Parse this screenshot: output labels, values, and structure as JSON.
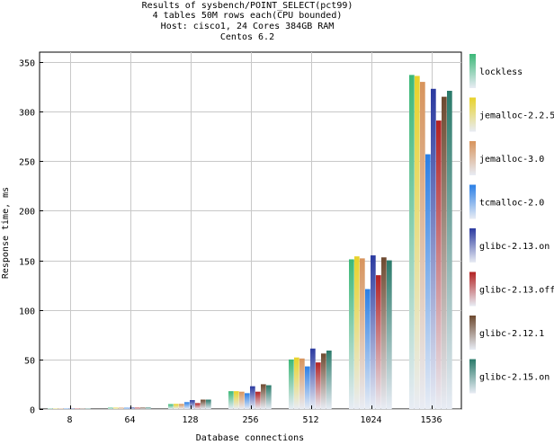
{
  "chart_data": {
    "type": "bar",
    "title_lines": [
      "Results of sysbench/POINT_SELECT(pct99)",
      "4 tables 50M rows each(CPU bounded)",
      "Host: cisco1, 24 Cores 384GB RAM",
      "Centos 6.2"
    ],
    "xlabel": "Database connections",
    "ylabel": "Response time, ms",
    "categories": [
      "8",
      "64",
      "128",
      "256",
      "512",
      "1024",
      "1536"
    ],
    "ylim": [
      0,
      360
    ],
    "yticks": [
      0,
      50,
      100,
      150,
      200,
      250,
      300,
      350
    ],
    "grid": true,
    "legend_position": "right",
    "series": [
      {
        "name": "lockless",
        "color": "#3cb878",
        "values": [
          0.2,
          1.4,
          5.0,
          18.0,
          50.0,
          151.0,
          337.0
        ]
      },
      {
        "name": "jemalloc-2.2.5",
        "color": "#e8d22a",
        "values": [
          0.2,
          1.4,
          5.2,
          18.0,
          52.0,
          154.0,
          336.0
        ]
      },
      {
        "name": "jemalloc-3.0",
        "color": "#d8945c",
        "values": [
          0.2,
          1.4,
          5.2,
          17.5,
          51.0,
          152.0,
          330.0
        ]
      },
      {
        "name": "tcmalloc-2.0",
        "color": "#2a7fe6",
        "values": [
          0.2,
          1.3,
          7.0,
          16.0,
          43.0,
          121.0,
          257.0
        ]
      },
      {
        "name": "glibc-2.13.on",
        "color": "#2b3aa0",
        "values": [
          0.2,
          1.5,
          9.0,
          23.0,
          61.0,
          155.0,
          323.0
        ]
      },
      {
        "name": "glibc-2.13.off",
        "color": "#b32222",
        "values": [
          0.2,
          1.4,
          6.0,
          17.5,
          47.0,
          135.0,
          291.0
        ]
      },
      {
        "name": "glibc-2.12.1",
        "color": "#6e4a30",
        "values": [
          0.2,
          1.5,
          9.5,
          25.0,
          56.0,
          153.0,
          315.0
        ]
      },
      {
        "name": "glibc-2.15.on",
        "color": "#2a7a6a",
        "values": [
          0.2,
          1.5,
          9.5,
          24.0,
          59.0,
          150.0,
          321.0
        ]
      }
    ]
  }
}
